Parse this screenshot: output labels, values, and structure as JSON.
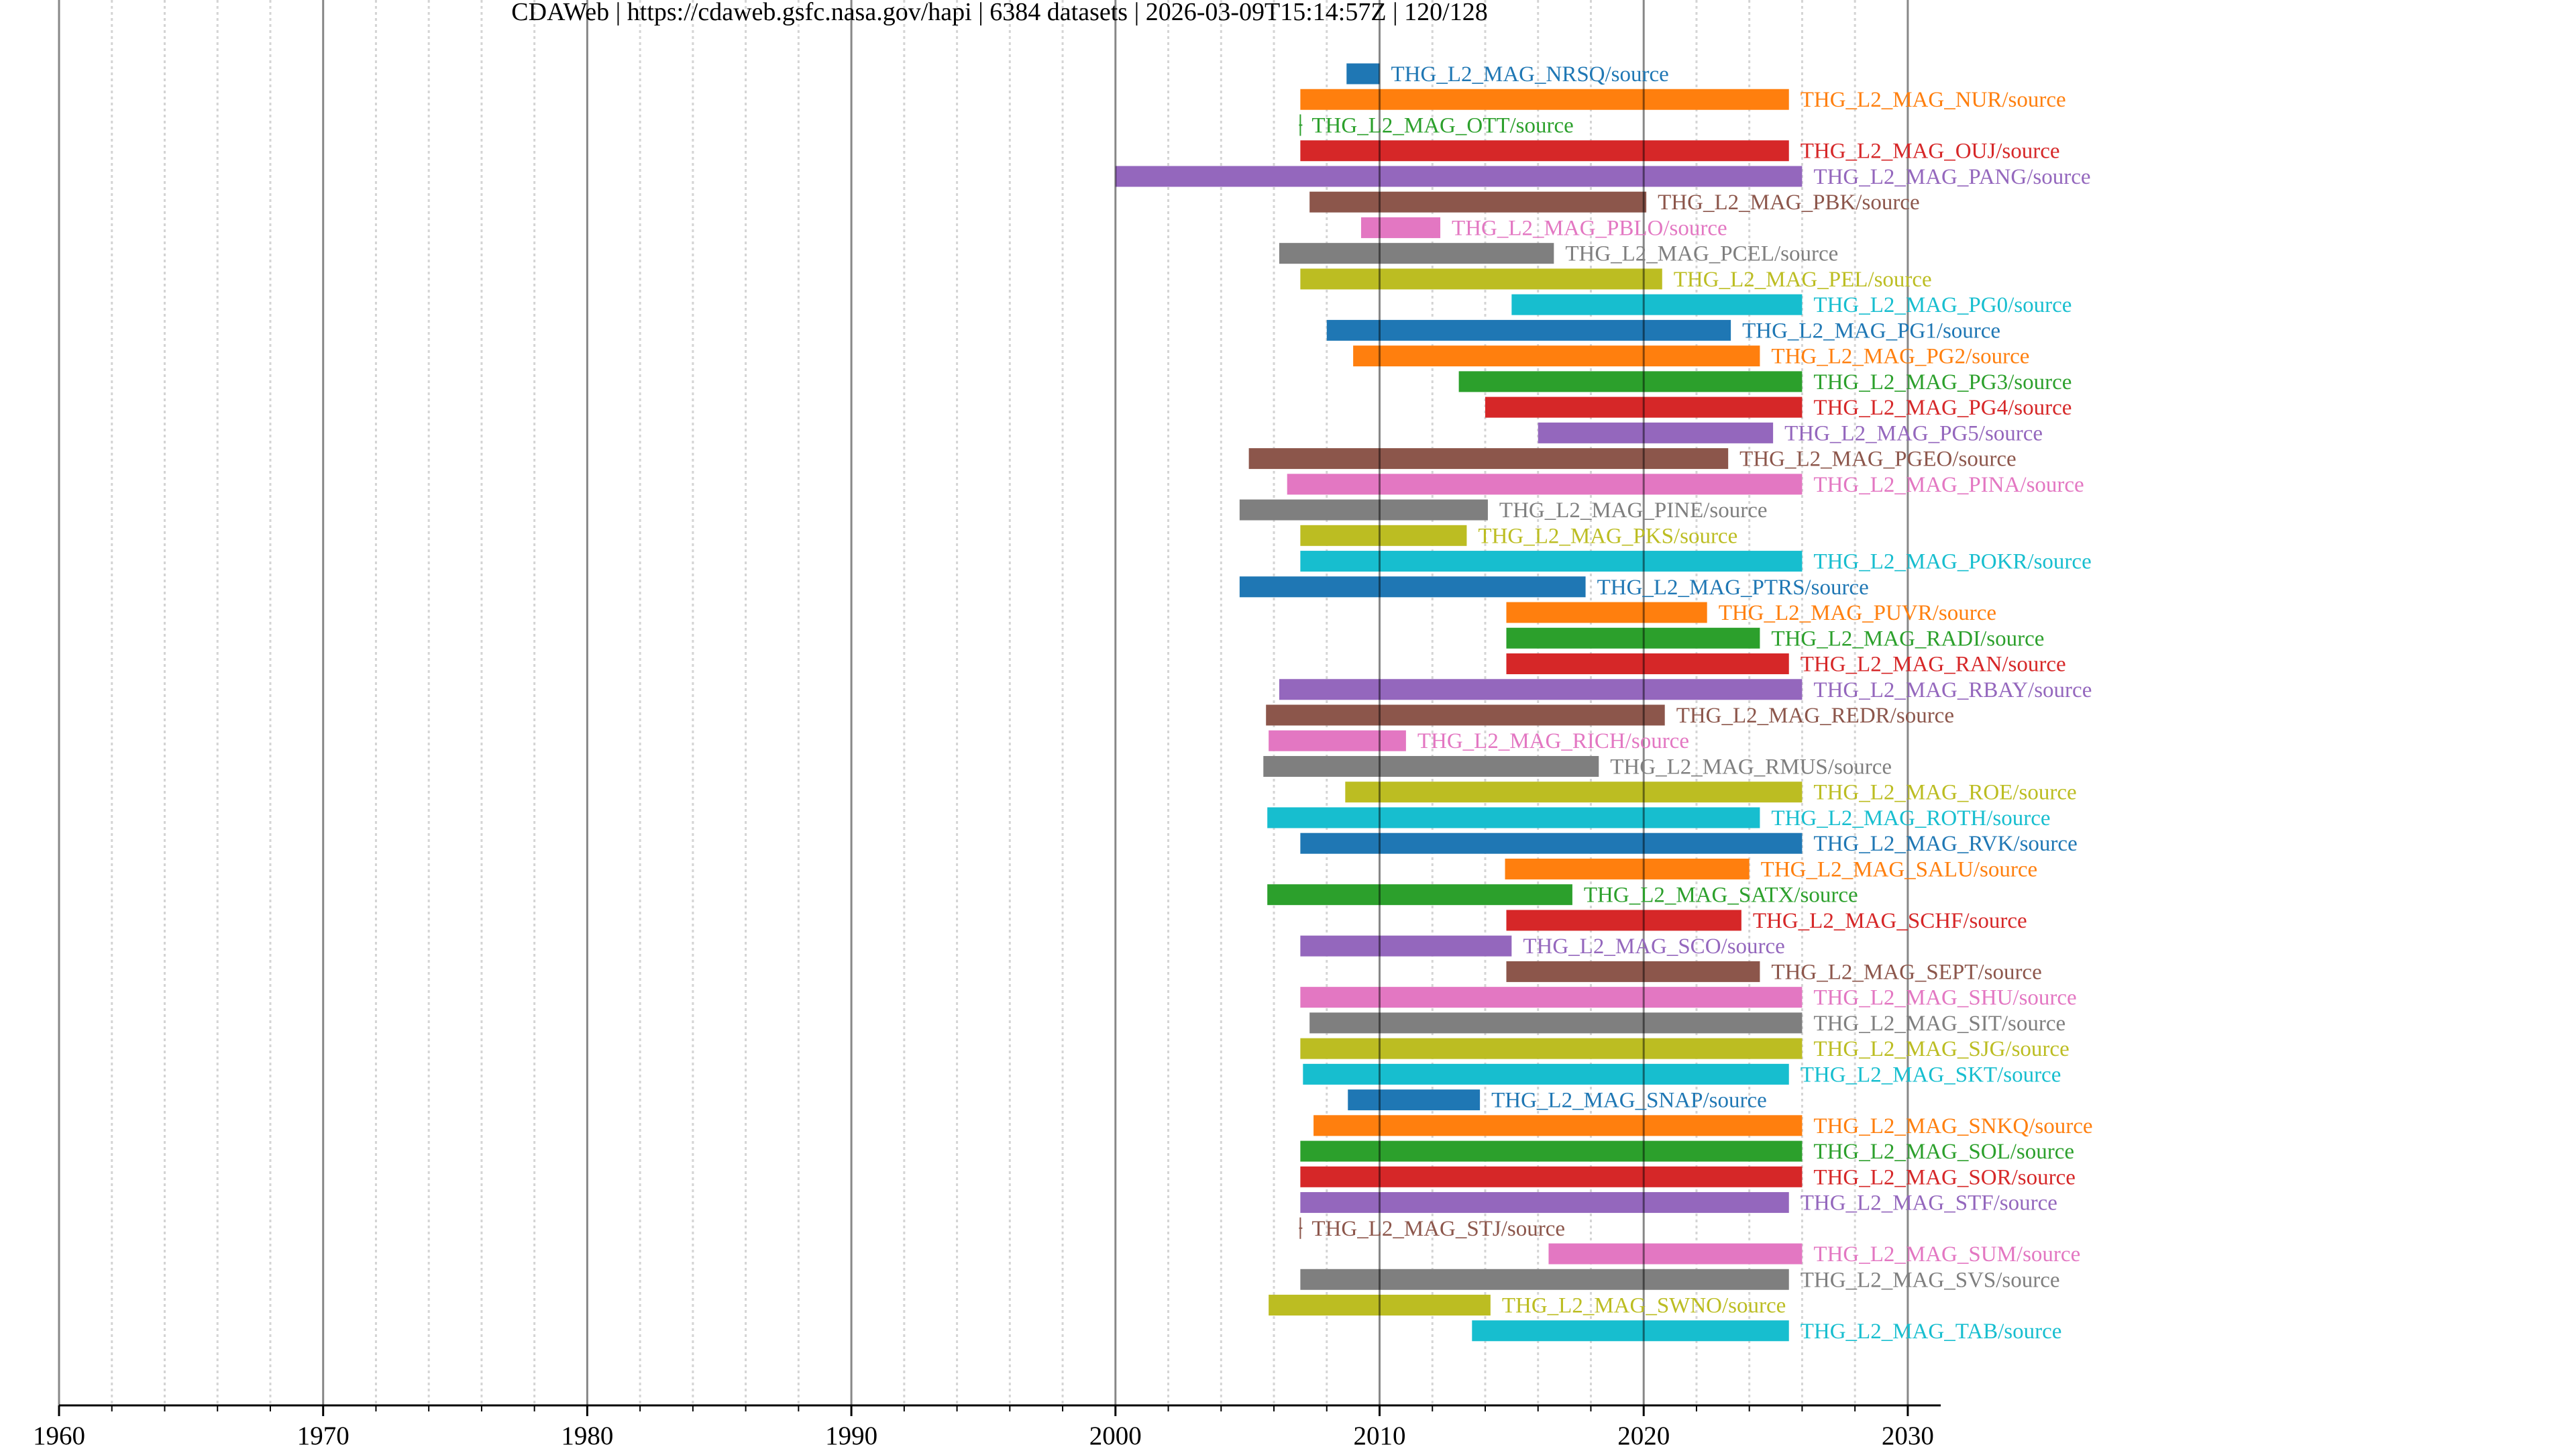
{
  "chart_data": {
    "type": "timeline",
    "title": "CDAWeb | https://cdaweb.gsfc.nasa.gov/hapi | 6384 datasets | 2026-03-09T15:14:57Z | 120/128",
    "xlabel": "",
    "ylabel": "",
    "xlim": [
      1960,
      2031.3
    ],
    "x_major_ticks": [
      1960,
      1970,
      1980,
      1990,
      2000,
      2010,
      2020,
      2030
    ],
    "x_tick_labels": [
      "1960",
      "1970",
      "1980",
      "1990",
      "2000",
      "2010",
      "2020",
      "2030"
    ],
    "x_minor_step_years": 2,
    "grid": true,
    "legend": "none",
    "palette": [
      "#1f77b4",
      "#ff7f0e",
      "#2ca02c",
      "#d62728",
      "#9467bd",
      "#8c564b",
      "#e377c2",
      "#7f7f7f",
      "#bcbd22",
      "#17becf"
    ],
    "series": [
      {
        "name": "THG_L2_MAG_NRSQ/source",
        "start": 2008.75,
        "end": 2010.0
      },
      {
        "name": "THG_L2_MAG_NUR/source",
        "start": 2007.0,
        "end": 2025.5
      },
      {
        "name": "THG_L2_MAG_OTT/source",
        "start": 2007.0,
        "end": 2007.0
      },
      {
        "name": "THG_L2_MAG_OUJ/source",
        "start": 2007.0,
        "end": 2025.5
      },
      {
        "name": "THG_L2_MAG_PANG/source",
        "start": 2000.0,
        "end": 2026.0
      },
      {
        "name": "THG_L2_MAG_PBK/source",
        "start": 2007.35,
        "end": 2020.1
      },
      {
        "name": "THG_L2_MAG_PBLO/source",
        "start": 2009.3,
        "end": 2012.3
      },
      {
        "name": "THG_L2_MAG_PCEL/source",
        "start": 2006.2,
        "end": 2016.6
      },
      {
        "name": "THG_L2_MAG_PEL/source",
        "start": 2007.0,
        "end": 2020.7
      },
      {
        "name": "THG_L2_MAG_PG0/source",
        "start": 2015.0,
        "end": 2026.0
      },
      {
        "name": "THG_L2_MAG_PG1/source",
        "start": 2008.0,
        "end": 2023.3
      },
      {
        "name": "THG_L2_MAG_PG2/source",
        "start": 2009.0,
        "end": 2024.4
      },
      {
        "name": "THG_L2_MAG_PG3/source",
        "start": 2013.0,
        "end": 2026.0
      },
      {
        "name": "THG_L2_MAG_PG4/source",
        "start": 2014.0,
        "end": 2026.0
      },
      {
        "name": "THG_L2_MAG_PG5/source",
        "start": 2016.0,
        "end": 2024.9
      },
      {
        "name": "THG_L2_MAG_PGEO/source",
        "start": 2005.05,
        "end": 2023.2
      },
      {
        "name": "THG_L2_MAG_PINA/source",
        "start": 2006.5,
        "end": 2026.0
      },
      {
        "name": "THG_L2_MAG_PINE/source",
        "start": 2004.7,
        "end": 2014.1
      },
      {
        "name": "THG_L2_MAG_PKS/source",
        "start": 2007.0,
        "end": 2013.3
      },
      {
        "name": "THG_L2_MAG_POKR/source",
        "start": 2007.0,
        "end": 2026.0
      },
      {
        "name": "THG_L2_MAG_PTRS/source",
        "start": 2004.7,
        "end": 2017.8
      },
      {
        "name": "THG_L2_MAG_PUVR/source",
        "start": 2014.8,
        "end": 2022.4
      },
      {
        "name": "THG_L2_MAG_RADI/source",
        "start": 2014.8,
        "end": 2024.4
      },
      {
        "name": "THG_L2_MAG_RAN/source",
        "start": 2014.8,
        "end": 2025.5
      },
      {
        "name": "THG_L2_MAG_RBAY/source",
        "start": 2006.2,
        "end": 2026.0
      },
      {
        "name": "THG_L2_MAG_REDR/source",
        "start": 2005.7,
        "end": 2020.8
      },
      {
        "name": "THG_L2_MAG_RICH/source",
        "start": 2005.8,
        "end": 2011.0
      },
      {
        "name": "THG_L2_MAG_RMUS/source",
        "start": 2005.6,
        "end": 2018.3
      },
      {
        "name": "THG_L2_MAG_ROE/source",
        "start": 2008.7,
        "end": 2026.0
      },
      {
        "name": "THG_L2_MAG_ROTH/source",
        "start": 2005.75,
        "end": 2024.4
      },
      {
        "name": "THG_L2_MAG_RVK/source",
        "start": 2007.0,
        "end": 2026.0
      },
      {
        "name": "THG_L2_MAG_SALU/source",
        "start": 2014.75,
        "end": 2024.0
      },
      {
        "name": "THG_L2_MAG_SATX/source",
        "start": 2005.75,
        "end": 2017.3
      },
      {
        "name": "THG_L2_MAG_SCHF/source",
        "start": 2014.8,
        "end": 2023.7
      },
      {
        "name": "THG_L2_MAG_SCO/source",
        "start": 2007.0,
        "end": 2015.0
      },
      {
        "name": "THG_L2_MAG_SEPT/source",
        "start": 2014.8,
        "end": 2024.4
      },
      {
        "name": "THG_L2_MAG_SHU/source",
        "start": 2007.0,
        "end": 2026.0
      },
      {
        "name": "THG_L2_MAG_SIT/source",
        "start": 2007.35,
        "end": 2026.0
      },
      {
        "name": "THG_L2_MAG_SJG/source",
        "start": 2007.0,
        "end": 2026.0
      },
      {
        "name": "THG_L2_MAG_SKT/source",
        "start": 2007.1,
        "end": 2025.5
      },
      {
        "name": "THG_L2_MAG_SNAP/source",
        "start": 2008.8,
        "end": 2013.8
      },
      {
        "name": "THG_L2_MAG_SNKQ/source",
        "start": 2007.5,
        "end": 2026.0
      },
      {
        "name": "THG_L2_MAG_SOL/source",
        "start": 2007.0,
        "end": 2026.0
      },
      {
        "name": "THG_L2_MAG_SOR/source",
        "start": 2007.0,
        "end": 2026.0
      },
      {
        "name": "THG_L2_MAG_STF/source",
        "start": 2007.0,
        "end": 2025.5
      },
      {
        "name": "THG_L2_MAG_STJ/source",
        "start": 2007.0,
        "end": 2007.0
      },
      {
        "name": "THG_L2_MAG_SUM/source",
        "start": 2016.4,
        "end": 2026.0
      },
      {
        "name": "THG_L2_MAG_SVS/source",
        "start": 2007.0,
        "end": 2025.5
      },
      {
        "name": "THG_L2_MAG_SWNO/source",
        "start": 2005.8,
        "end": 2014.2
      },
      {
        "name": "THG_L2_MAG_TAB/source",
        "start": 2013.5,
        "end": 2025.5
      }
    ]
  }
}
